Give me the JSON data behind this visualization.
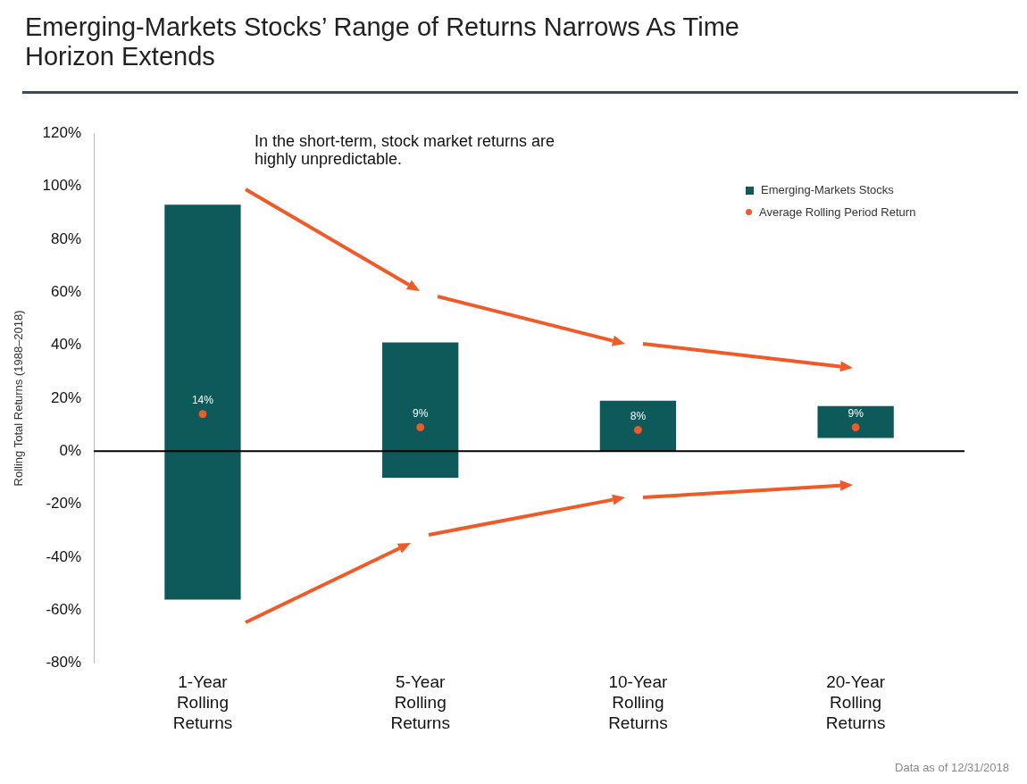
{
  "chart_data": {
    "type": "bar",
    "title": "Emerging-Markets Stocks’ Range of Returns Narrows As Time Horizon Extends",
    "ylabel": "Rolling Total Returns (1988–2018)",
    "categories": [
      "1-Year Rolling Returns",
      "5-Year Rolling Returns",
      "10-Year Rolling Returns",
      "20-Year Rolling Returns"
    ],
    "series": [
      {
        "name": "Emerging-Markets Stocks",
        "color": "#0e5a5a",
        "base": [
          -56,
          -10,
          0,
          5
        ],
        "values": [
          149,
          51,
          19,
          12
        ]
      },
      {
        "name": "Average Rolling Period Return",
        "type": "scatter",
        "color": "#f05a28",
        "x": [
          "1-Year Rolling Returns",
          "5-Year Rolling Returns",
          "10-Year Rolling Returns",
          "20-Year Rolling Returns"
        ],
        "values": [
          14,
          9,
          8,
          9
        ],
        "value_labels": [
          "14%",
          "9%",
          "8%",
          "9%"
        ]
      }
    ],
    "ylim": [
      -80,
      120
    ],
    "yticks": [
      {
        "value": -80,
        "label": "-80%"
      },
      {
        "value": -60,
        "label": "-60%"
      },
      {
        "value": -40,
        "label": "-40%"
      },
      {
        "value": -20,
        "label": "-20%"
      },
      {
        "value": 0,
        "label": "0%"
      },
      {
        "value": 20,
        "label": "20%"
      },
      {
        "value": 40,
        "label": "40%"
      },
      {
        "value": 60,
        "label": "60%"
      },
      {
        "value": 80,
        "label": "80%"
      },
      {
        "value": 100,
        "label": "100%"
      },
      {
        "value": 120,
        "label": "120%"
      }
    ],
    "ref_lines": [
      {
        "axis": "y",
        "value": 0,
        "color": "#000000"
      }
    ],
    "grid": false,
    "legend": "top right",
    "marker": "circle",
    "annotations": [
      "In the short-term, stock market returns are highly unpredictable.",
      "Data as of 12/31/2018"
    ]
  }
}
